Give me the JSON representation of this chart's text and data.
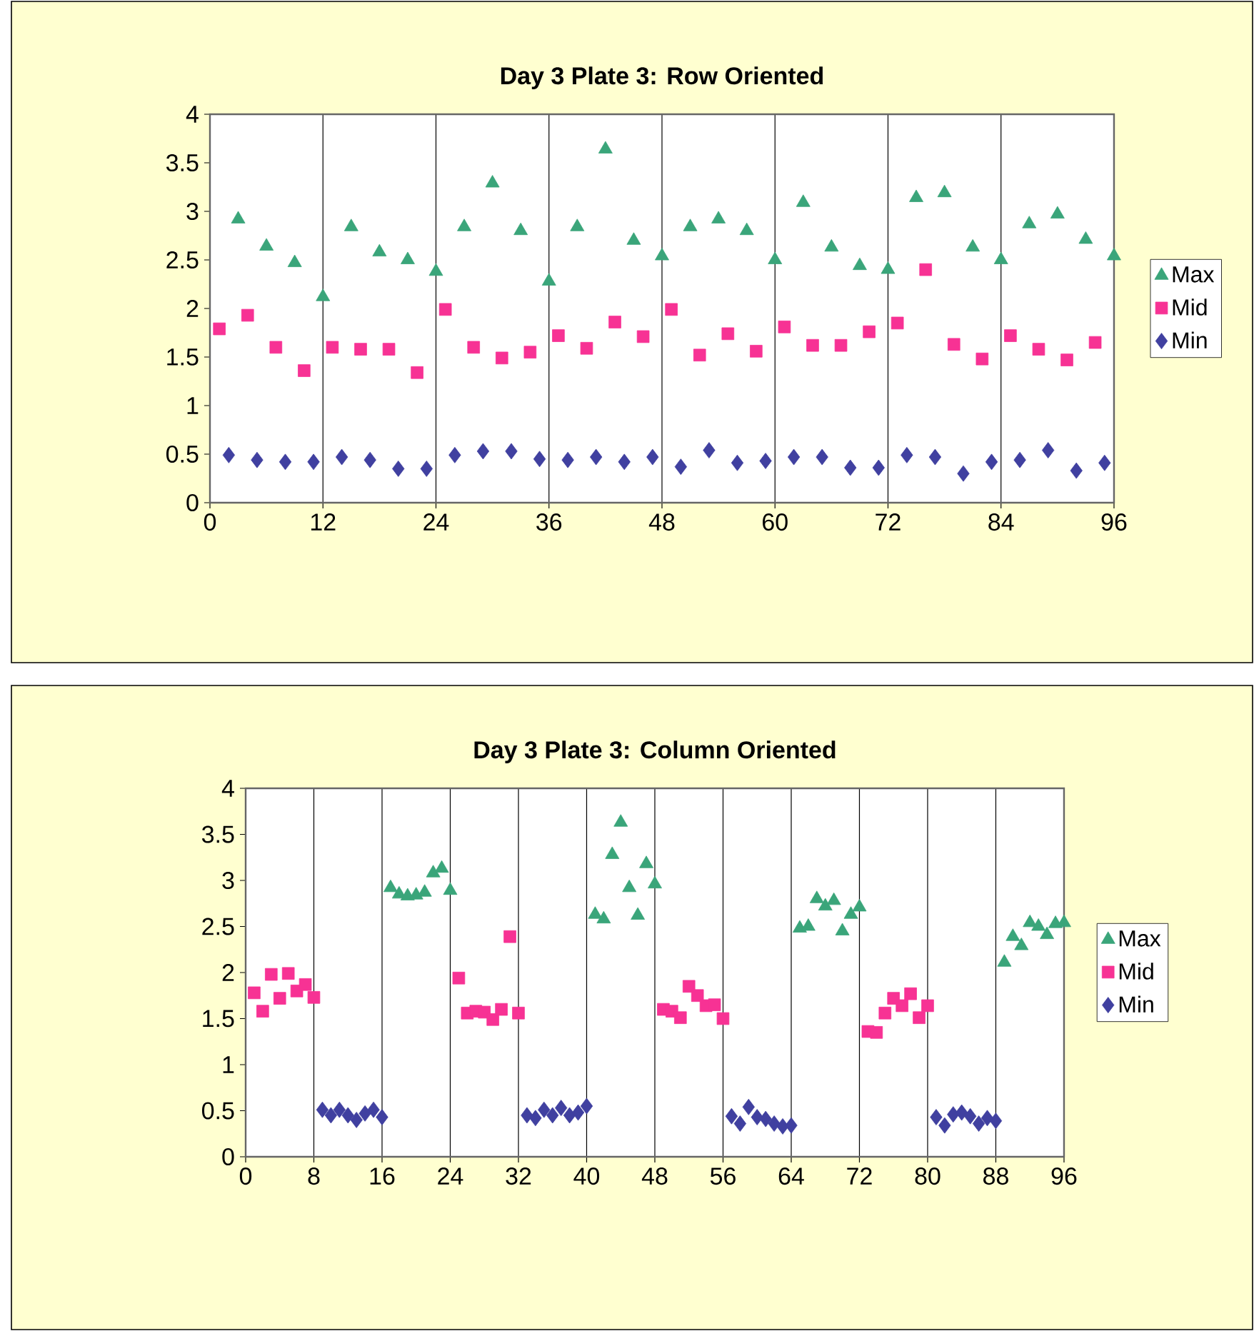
{
  "chart_data": [
    {
      "type": "scatter",
      "title": "Day 3 Plate 3: Row Oriented",
      "xlim": [
        0,
        96
      ],
      "xticks": [
        0,
        12,
        24,
        36,
        48,
        60,
        72,
        84,
        96
      ],
      "ylim": [
        0,
        4
      ],
      "yticks": [
        0,
        0.5,
        1,
        1.5,
        2,
        2.5,
        3,
        3.5,
        4
      ],
      "grid": "x",
      "legend": "right",
      "series": [
        {
          "name": "Max",
          "color": "#3aa57a",
          "marker": "triangle",
          "x": [
            3,
            6,
            9,
            12,
            15,
            18,
            21,
            24,
            27,
            30,
            33,
            36,
            39,
            42,
            45,
            48,
            51,
            54,
            57,
            60,
            63,
            66,
            69,
            72,
            75,
            78,
            81,
            84,
            87,
            90,
            93,
            96
          ],
          "values": [
            2.92,
            2.64,
            2.47,
            2.12,
            2.84,
            2.58,
            2.5,
            2.38,
            2.84,
            3.29,
            2.8,
            2.28,
            2.84,
            3.64,
            2.7,
            2.54,
            2.84,
            2.92,
            2.8,
            2.5,
            3.09,
            2.63,
            2.44,
            2.4,
            3.14,
            3.19,
            2.63,
            2.5,
            2.87,
            2.97,
            2.71,
            2.54
          ]
        },
        {
          "name": "Mid",
          "color": "#f73294",
          "marker": "square",
          "x": [
            1,
            4,
            7,
            10,
            13,
            16,
            19,
            22,
            25,
            28,
            31,
            34,
            37,
            40,
            43,
            46,
            49,
            52,
            55,
            58,
            61,
            64,
            67,
            70,
            73,
            76,
            79,
            82,
            85,
            88,
            91,
            94
          ],
          "values": [
            1.79,
            1.93,
            1.6,
            1.36,
            1.6,
            1.58,
            1.58,
            1.34,
            1.99,
            1.6,
            1.49,
            1.55,
            1.72,
            1.59,
            1.86,
            1.71,
            1.99,
            1.52,
            1.74,
            1.56,
            1.81,
            1.62,
            1.62,
            1.76,
            1.85,
            2.4,
            1.63,
            1.48,
            1.72,
            1.58,
            1.47,
            1.65
          ]
        },
        {
          "name": "Min",
          "color": "#4040a0",
          "marker": "diamond",
          "x": [
            2,
            5,
            8,
            11,
            14,
            17,
            20,
            23,
            26,
            29,
            32,
            35,
            38,
            41,
            44,
            47,
            50,
            53,
            56,
            59,
            62,
            65,
            68,
            71,
            74,
            77,
            80,
            83,
            86,
            89,
            92,
            95
          ],
          "values": [
            0.49,
            0.44,
            0.42,
            0.42,
            0.47,
            0.44,
            0.35,
            0.35,
            0.49,
            0.53,
            0.53,
            0.45,
            0.44,
            0.47,
            0.42,
            0.47,
            0.37,
            0.54,
            0.41,
            0.43,
            0.47,
            0.47,
            0.36,
            0.36,
            0.49,
            0.47,
            0.3,
            0.42,
            0.44,
            0.54,
            0.33,
            0.41
          ]
        }
      ]
    },
    {
      "type": "scatter",
      "title": "Day 3 Plate 3: Column Oriented",
      "xlim": [
        0,
        96
      ],
      "xticks": [
        0,
        8,
        16,
        24,
        32,
        40,
        48,
        56,
        64,
        72,
        80,
        88,
        96
      ],
      "ylim": [
        0,
        4
      ],
      "yticks": [
        0,
        0.5,
        1,
        1.5,
        2,
        2.5,
        3,
        3.5,
        4
      ],
      "grid": "x",
      "legend": "right",
      "series": [
        {
          "name": "Max",
          "color": "#3aa57a",
          "marker": "triangle",
          "x": [
            17,
            18,
            19,
            20,
            21,
            22,
            23,
            24,
            41,
            42,
            43,
            44,
            45,
            46,
            47,
            48,
            65,
            66,
            67,
            68,
            69,
            70,
            71,
            72,
            89,
            90,
            91,
            92,
            93,
            94,
            95,
            96
          ],
          "values": [
            2.92,
            2.85,
            2.83,
            2.84,
            2.87,
            3.08,
            3.13,
            2.89,
            2.63,
            2.58,
            3.28,
            3.63,
            2.92,
            2.62,
            3.18,
            2.96,
            2.48,
            2.5,
            2.8,
            2.72,
            2.78,
            2.45,
            2.63,
            2.71,
            2.11,
            2.39,
            2.29,
            2.54,
            2.5,
            2.41,
            2.53,
            2.54
          ]
        },
        {
          "name": "Mid",
          "color": "#f73294",
          "marker": "square",
          "x": [
            1,
            2,
            3,
            4,
            5,
            6,
            7,
            8,
            25,
            26,
            27,
            28,
            29,
            30,
            31,
            32,
            49,
            50,
            51,
            52,
            53,
            54,
            55,
            56,
            73,
            74,
            75,
            76,
            77,
            78,
            79,
            80
          ],
          "values": [
            1.78,
            1.58,
            1.98,
            1.72,
            1.99,
            1.8,
            1.87,
            1.73,
            1.94,
            1.56,
            1.58,
            1.57,
            1.49,
            1.6,
            2.39,
            1.56,
            1.6,
            1.58,
            1.51,
            1.85,
            1.75,
            1.64,
            1.65,
            1.5,
            1.36,
            1.35,
            1.56,
            1.72,
            1.64,
            1.77,
            1.51,
            1.64
          ]
        },
        {
          "name": "Min",
          "color": "#4040a0",
          "marker": "diamond",
          "x": [
            9,
            10,
            11,
            12,
            13,
            14,
            15,
            16,
            33,
            34,
            35,
            36,
            37,
            38,
            39,
            40,
            57,
            58,
            59,
            60,
            61,
            62,
            63,
            64,
            81,
            82,
            83,
            84,
            85,
            86,
            87,
            88
          ],
          "values": [
            0.51,
            0.45,
            0.51,
            0.45,
            0.4,
            0.47,
            0.51,
            0.43,
            0.45,
            0.42,
            0.51,
            0.45,
            0.53,
            0.45,
            0.48,
            0.55,
            0.44,
            0.36,
            0.54,
            0.43,
            0.41,
            0.36,
            0.33,
            0.34,
            0.43,
            0.34,
            0.46,
            0.48,
            0.44,
            0.36,
            0.42,
            0.39
          ]
        }
      ]
    }
  ]
}
